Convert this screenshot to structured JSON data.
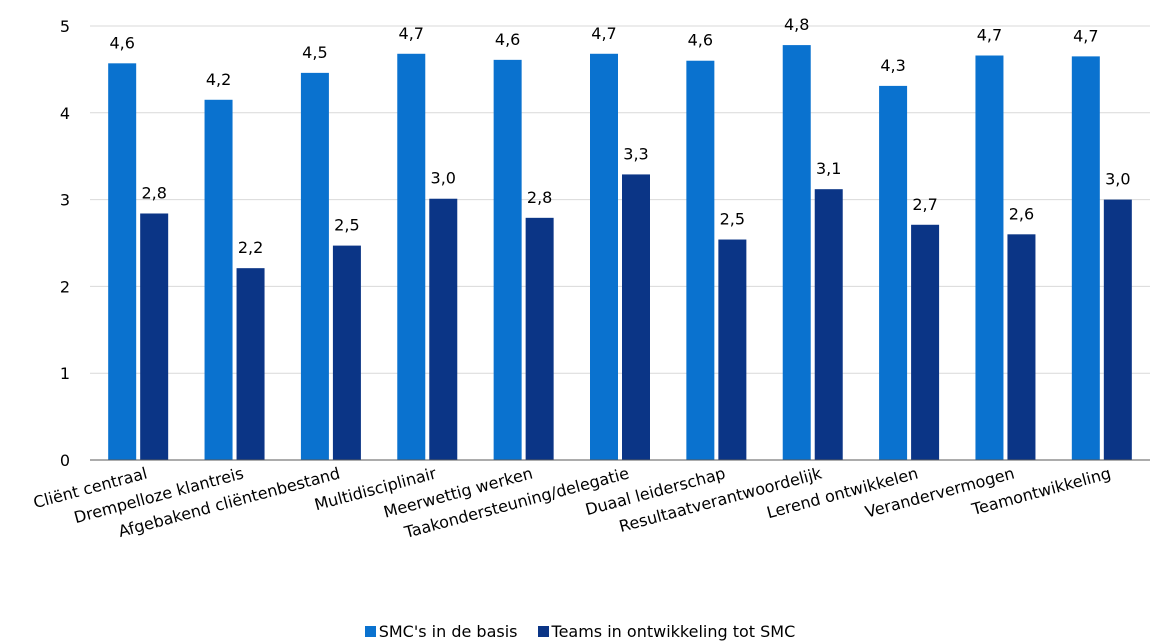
{
  "chart_data": {
    "type": "bar",
    "categories": [
      "Cliënt centraal",
      "Drempelloze klantreis",
      "Afgebakend cliëntenbestand",
      "Multidisciplinair",
      "Meerwettig werken",
      "Taakondersteuning/delegatie",
      "Duaal leiderschap",
      "Resultaatverantwoordelijk",
      "Lerend ontwikkelen",
      "Verandervermogen",
      "Teamontwikkeling"
    ],
    "series": [
      {
        "name": "SMC's in de basis",
        "color": "#0a72cf",
        "values": [
          4.57,
          4.15,
          4.46,
          4.68,
          4.61,
          4.68,
          4.6,
          4.78,
          4.31,
          4.66,
          4.65
        ],
        "labels": [
          "4,6",
          "4,2",
          "4,5",
          "4,7",
          "4,6",
          "4,7",
          "4,6",
          "4,8",
          "4,3",
          "4,7",
          "4,7"
        ]
      },
      {
        "name": "Teams in ontwikkeling tot SMC",
        "color": "#0b3586",
        "values": [
          2.84,
          2.21,
          2.47,
          3.01,
          2.79,
          3.29,
          2.54,
          3.12,
          2.71,
          2.6,
          3.0
        ],
        "labels": [
          "2,8",
          "2,2",
          "2,5",
          "3,0",
          "2,8",
          "3,3",
          "2,5",
          "3,1",
          "2,7",
          "2,6",
          "3,0"
        ]
      }
    ],
    "ylim": [
      0,
      5
    ],
    "yticks": [
      "0",
      "1",
      "2",
      "3",
      "4",
      "5"
    ],
    "grid": true,
    "legend_position": "bottom"
  }
}
